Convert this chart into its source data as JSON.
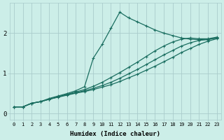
{
  "xlabel": "Humidex (Indice chaleur)",
  "bg_color": "#cceee8",
  "grid_color": "#aacccc",
  "line_color": "#1a6e60",
  "xlim": [
    -0.5,
    23.5
  ],
  "ylim": [
    -0.15,
    2.75
  ],
  "xticks": [
    0,
    1,
    2,
    3,
    4,
    5,
    6,
    7,
    8,
    9,
    10,
    11,
    12,
    13,
    14,
    15,
    16,
    17,
    18,
    19,
    20,
    21,
    22,
    23
  ],
  "yticks": [
    0,
    1,
    2
  ],
  "series": [
    {
      "x": [
        0,
        1,
        2,
        3,
        4,
        5,
        6,
        7,
        8,
        9,
        10,
        11,
        12,
        13,
        14,
        15,
        16,
        17,
        18,
        19,
        20,
        21,
        22,
        23
      ],
      "y": [
        0.17,
        0.17,
        0.26,
        0.3,
        0.38,
        0.44,
        0.5,
        0.57,
        0.67,
        1.38,
        1.72,
        2.12,
        2.52,
        2.38,
        2.28,
        2.18,
        2.08,
        2.0,
        1.94,
        1.88,
        1.85,
        1.84,
        1.85,
        1.88
      ]
    },
    {
      "x": [
        0,
        1,
        2,
        3,
        4,
        5,
        6,
        7,
        8,
        9,
        10,
        11,
        12,
        13,
        14,
        15,
        16,
        17,
        18,
        19,
        20,
        21,
        22,
        23
      ],
      "y": [
        0.17,
        0.17,
        0.26,
        0.3,
        0.36,
        0.42,
        0.48,
        0.54,
        0.6,
        0.68,
        0.78,
        0.9,
        1.02,
        1.15,
        1.28,
        1.42,
        1.56,
        1.68,
        1.78,
        1.85,
        1.88,
        1.86,
        1.86,
        1.9
      ]
    },
    {
      "x": [
        0,
        1,
        2,
        3,
        4,
        5,
        6,
        7,
        8,
        9,
        10,
        11,
        12,
        13,
        14,
        15,
        16,
        17,
        18,
        19,
        20,
        21,
        22,
        23
      ],
      "y": [
        0.17,
        0.17,
        0.26,
        0.3,
        0.36,
        0.42,
        0.47,
        0.52,
        0.57,
        0.63,
        0.7,
        0.78,
        0.88,
        0.99,
        1.1,
        1.22,
        1.34,
        1.46,
        1.57,
        1.68,
        1.76,
        1.82,
        1.84,
        1.88
      ]
    },
    {
      "x": [
        0,
        1,
        2,
        3,
        4,
        5,
        6,
        7,
        8,
        9,
        10,
        11,
        12,
        13,
        14,
        15,
        16,
        17,
        18,
        19,
        20,
        21,
        22,
        23
      ],
      "y": [
        0.17,
        0.17,
        0.26,
        0.3,
        0.36,
        0.41,
        0.46,
        0.51,
        0.55,
        0.6,
        0.66,
        0.72,
        0.8,
        0.89,
        0.98,
        1.08,
        1.18,
        1.29,
        1.4,
        1.52,
        1.62,
        1.72,
        1.8,
        1.86
      ]
    }
  ],
  "marker": "+",
  "markersize": 3.5,
  "linewidth": 0.9
}
